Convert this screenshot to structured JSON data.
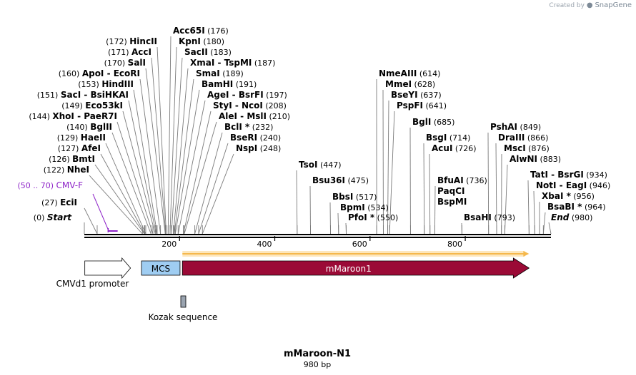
{
  "map": {
    "title": "mMaroon-N1",
    "length_label": "980 bp",
    "brand": {
      "created_by": "Created by",
      "name": "SnapGene"
    },
    "ruler": {
      "ticks": [
        {
          "value": 200,
          "label": "200"
        },
        {
          "value": 400,
          "label": "400"
        },
        {
          "value": 600,
          "label": "600"
        },
        {
          "value": 800,
          "label": "800"
        }
      ]
    },
    "cutters": [
      {
        "name": "EciI",
        "pos": 27,
        "pos_label": "(27)"
      },
      {
        "name": "NheI",
        "pos": 122,
        "pos_label": "(122)"
      },
      {
        "name": "BmtI",
        "pos": 126,
        "pos_label": "(126)"
      },
      {
        "name": "AfeI",
        "pos": 127,
        "pos_label": "(127)"
      },
      {
        "name": "HaeII",
        "pos": 129,
        "pos_label": "(129)"
      },
      {
        "name": "BglII",
        "pos": 140,
        "pos_label": "(140)"
      },
      {
        "name": "XhoI - PaeR7I",
        "pos": 144,
        "pos_label": "(144)"
      },
      {
        "name": "Eco53kI",
        "pos": 149,
        "pos_label": "(149)"
      },
      {
        "name": "SacI - BsiHKAI",
        "pos": 151,
        "pos_label": "(151)"
      },
      {
        "name": "HindIII",
        "pos": 153,
        "pos_label": "(153)"
      },
      {
        "name": "ApoI - EcoRI",
        "pos": 160,
        "pos_label": "(160)"
      },
      {
        "name": "SalI",
        "pos": 170,
        "pos_label": "(170)"
      },
      {
        "name": "AccI",
        "pos": 171,
        "pos_label": "(171)"
      },
      {
        "name": "HincII",
        "pos": 172,
        "pos_label": "(172)"
      },
      {
        "name": "Acc65I",
        "pos": 176,
        "pos_label": "(176)"
      },
      {
        "name": "KpnI",
        "pos": 180,
        "pos_label": "(180)"
      },
      {
        "name": "SacII",
        "pos": 183,
        "pos_label": "(183)"
      },
      {
        "name": "XmaI - TspMI",
        "pos": 187,
        "pos_label": "(187)"
      },
      {
        "name": "SmaI",
        "pos": 189,
        "pos_label": "(189)"
      },
      {
        "name": "BamHI",
        "pos": 191,
        "pos_label": "(191)"
      },
      {
        "name": "AgeI - BsrFI",
        "pos": 197,
        "pos_label": "(197)"
      },
      {
        "name": "StyI - NcoI",
        "pos": 208,
        "pos_label": "(208)"
      },
      {
        "name": "AleI - MslI",
        "pos": 210,
        "pos_label": "(210)"
      },
      {
        "name": "BclI *",
        "pos": 232,
        "pos_label": "(232)"
      },
      {
        "name": "BseRI",
        "pos": 240,
        "pos_label": "(240)"
      },
      {
        "name": "NspI",
        "pos": 248,
        "pos_label": "(248)"
      },
      {
        "name": "TsoI",
        "pos": 447,
        "pos_label": "(447)"
      },
      {
        "name": "Bsu36I",
        "pos": 475,
        "pos_label": "(475)"
      },
      {
        "name": "BbsI",
        "pos": 517,
        "pos_label": "(517)"
      },
      {
        "name": "BpmI",
        "pos": 534,
        "pos_label": "(534)"
      },
      {
        "name": "PfoI *",
        "pos": 550,
        "pos_label": "(550)"
      },
      {
        "name": "NmeAIII",
        "pos": 614,
        "pos_label": "(614)"
      },
      {
        "name": "MmeI",
        "pos": 628,
        "pos_label": "(628)"
      },
      {
        "name": "BseYI",
        "pos": 637,
        "pos_label": "(637)"
      },
      {
        "name": "PspFI",
        "pos": 641,
        "pos_label": "(641)"
      },
      {
        "name": "BglI",
        "pos": 685,
        "pos_label": "(685)"
      },
      {
        "name": "BsgI",
        "pos": 714,
        "pos_label": "(714)"
      },
      {
        "name": "AcuI",
        "pos": 726,
        "pos_label": "(726)"
      },
      {
        "name": "BfuAI",
        "pos": 736,
        "pos_label": "(736)"
      },
      {
        "name": "PaqCI",
        "pos": 736,
        "pos_label": ""
      },
      {
        "name": "BspMI",
        "pos": 736,
        "pos_label": ""
      },
      {
        "name": "BsaHI",
        "pos": 793,
        "pos_label": "(793)"
      },
      {
        "name": "PshAI",
        "pos": 849,
        "pos_label": "(849)"
      },
      {
        "name": "DraIII",
        "pos": 866,
        "pos_label": "(866)"
      },
      {
        "name": "MscI",
        "pos": 876,
        "pos_label": "(876)"
      },
      {
        "name": "AlwNI",
        "pos": 883,
        "pos_label": "(883)"
      },
      {
        "name": "TatI - BsrGI",
        "pos": 934,
        "pos_label": "(934)"
      },
      {
        "name": "NotI - EagI",
        "pos": 946,
        "pos_label": "(946)"
      },
      {
        "name": "XbaI *",
        "pos": 956,
        "pos_label": "(956)"
      },
      {
        "name": "BsaBI *",
        "pos": 964,
        "pos_label": "(964)"
      }
    ],
    "start_marker": {
      "name": "Start",
      "pos": 0,
      "pos_label": "(0)"
    },
    "end_marker": {
      "name": "End",
      "pos": 980,
      "pos_label": "(980)"
    },
    "primer": {
      "name": "CMV-F",
      "range_label": "(50 .. 70)",
      "start": 50,
      "end": 70,
      "color": "#8e24c8"
    },
    "features": [
      {
        "name": "CMVd1 promoter",
        "start": 1,
        "end": 97,
        "color": "#ffffff",
        "label_position": "below"
      },
      {
        "name": "MCS",
        "start": 120,
        "end": 201,
        "color": "#9fcdf2",
        "label_position": "inside"
      },
      {
        "name": "mMaroon1",
        "start": 206,
        "end": 934,
        "color": "#9b0a36",
        "label_position": "inside"
      },
      {
        "name": "Kozak sequence",
        "start": 203,
        "end": 212,
        "color": "#9aa4b0",
        "label_position": "below"
      }
    ],
    "orf": {
      "start": 206,
      "end": 934,
      "color": "#f5b84c"
    }
  }
}
